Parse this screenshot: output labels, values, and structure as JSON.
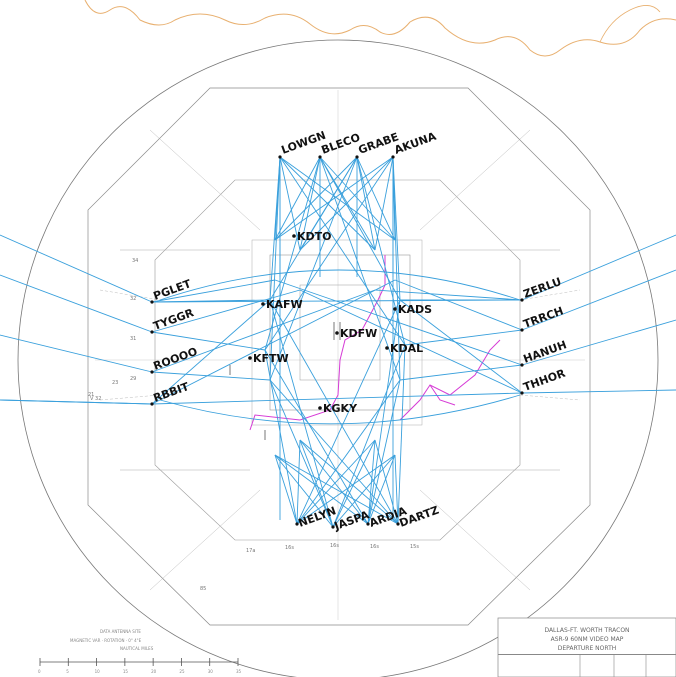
{
  "colors": {
    "route": "#3aa0dc",
    "magenta": "#d63bd6",
    "border": "#e8b070",
    "linework": "#9a9a9a",
    "text": "#111111"
  },
  "fixes": {
    "north": [
      "LOWGN",
      "BLECO",
      "GRABE",
      "AKUNA"
    ],
    "west": [
      "PGLET",
      "TYGGR",
      "ROOOO",
      "RBBIT"
    ],
    "east": [
      "ZERLU",
      "TRRCH",
      "HANUH",
      "THHOR"
    ],
    "south": [
      "NELYN",
      "JASPA",
      "ARDIA",
      "DARTZ"
    ]
  },
  "airports": [
    "KDTO",
    "KAFW",
    "KDFW",
    "KADS",
    "KFTW",
    "KDAL",
    "KGKY"
  ],
  "title_block": {
    "line1": "DALLAS-FT. WORTH TRACON",
    "line2": "ASR-9 60NM VIDEO MAP",
    "line3": "DEPARTURE NORTH"
  },
  "scale": {
    "label": "NAUTICAL MILES",
    "ticks": [
      "0",
      "5",
      "10",
      "15",
      "20",
      "25",
      "30",
      "35"
    ]
  },
  "altitude_labels": [
    "34",
    "32",
    "31",
    "23",
    "29",
    "21",
    "V 32",
    "85",
    "17a",
    "16s",
    "16s",
    "16s",
    "15s"
  ]
}
